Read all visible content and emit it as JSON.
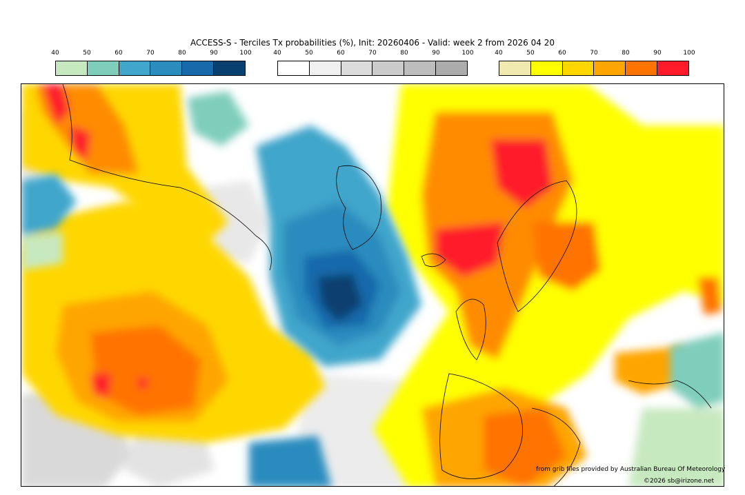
{
  "title": "ACCESS-S - Terciles Tx probabilities (%), Init: 20260406 - Valid: week 2 from 2026 04 20",
  "colorbars": [
    {
      "name": "below-normal",
      "ticks": [
        "40",
        "50",
        "60",
        "70",
        "80",
        "90",
        "100"
      ],
      "colors": [
        "#c7e9c0",
        "#7fcdbb",
        "#41a6cb",
        "#2b8cbe",
        "#1769aa",
        "#08406f"
      ]
    },
    {
      "name": "near-normal",
      "ticks": [
        "40",
        "50",
        "60",
        "70",
        "80",
        "90",
        "100"
      ],
      "colors": [
        "#ffffff",
        "#f0f0f0",
        "#dcdcdc",
        "#cbcbcb",
        "#bdbdbd",
        "#acacac"
      ]
    },
    {
      "name": "above-normal",
      "ticks": [
        "40",
        "50",
        "60",
        "70",
        "80",
        "90",
        "100"
      ],
      "colors": [
        "#f0eab0",
        "#ffff00",
        "#ffd700",
        "#ffa500",
        "#ff7300",
        "#ff1a2a"
      ]
    }
  ],
  "credits": {
    "source": "from grib files provided by Australian Bureau Of Meteorology",
    "copyright": "©2026 sb@irizone.net"
  },
  "map": {
    "regions": [
      {
        "name": "north-america-warm",
        "category": "above-normal",
        "level": "70-80"
      },
      {
        "name": "atlantic-cold",
        "category": "below-normal",
        "level": "90-100"
      },
      {
        "name": "europe-warm",
        "category": "above-normal",
        "level": "90-100"
      }
    ]
  }
}
